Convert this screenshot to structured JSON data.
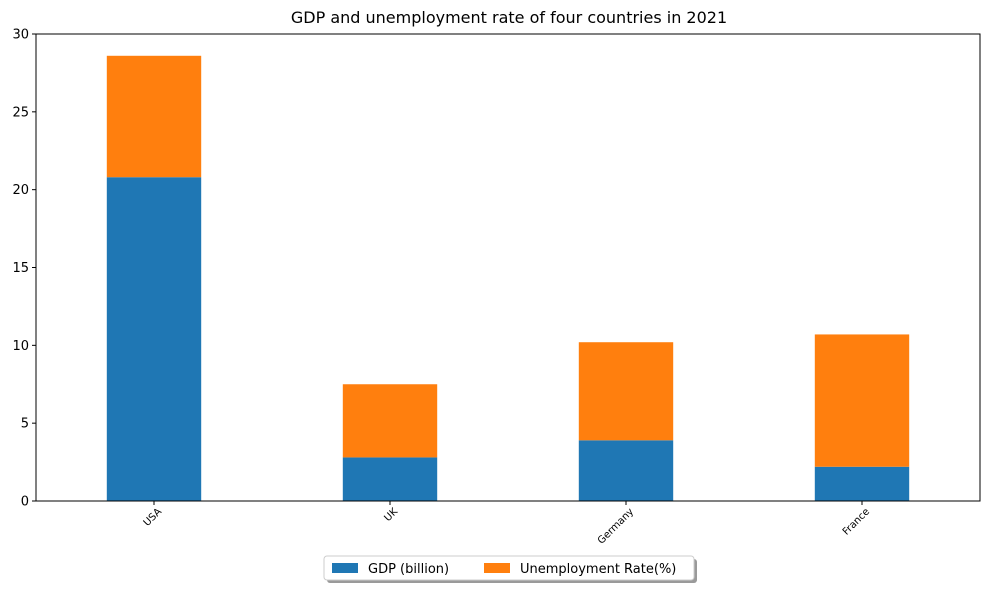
{
  "chart_data": {
    "type": "bar",
    "stacked": true,
    "title": "GDP and unemployment rate of four countries in 2021",
    "xlabel": "",
    "ylabel": "",
    "categories": [
      "USA",
      "UK",
      "Germany",
      "France"
    ],
    "series": [
      {
        "name": "GDP (billion)",
        "values": [
          20.8,
          2.8,
          3.9,
          2.2
        ],
        "color": "#1f77b4"
      },
      {
        "name": "Unemployment Rate(%)",
        "values": [
          7.8,
          4.7,
          6.3,
          8.5
        ],
        "color": "#ff7f0e"
      }
    ],
    "ylim": [
      0,
      30
    ],
    "yticks": [
      0,
      5,
      10,
      15,
      20,
      25,
      30
    ],
    "grid": false,
    "legend_position": "bottom-center"
  }
}
